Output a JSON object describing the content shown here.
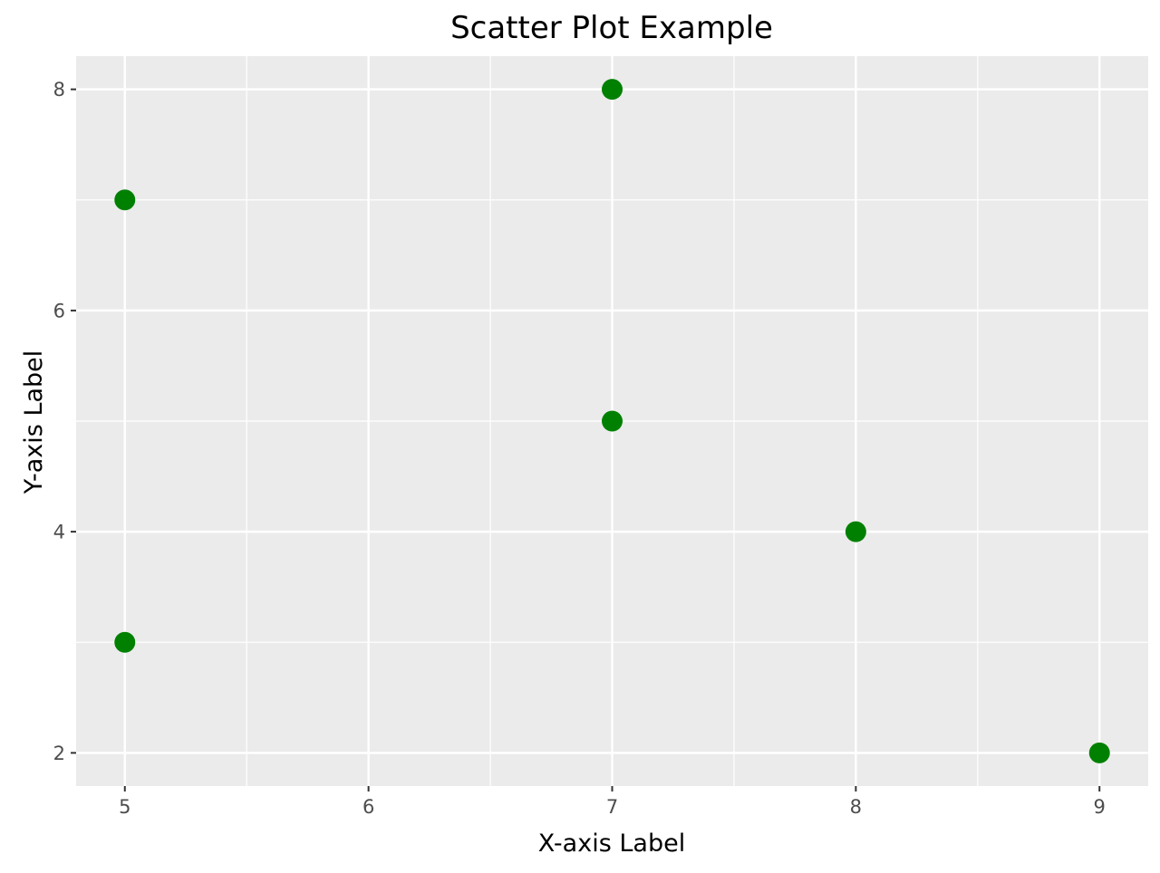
{
  "chart_data": {
    "type": "scatter",
    "title": "Scatter Plot Example",
    "xlabel": "X-axis Label",
    "ylabel": "Y-axis Label",
    "xlim": [
      4.8,
      9.2
    ],
    "ylim": [
      1.7,
      8.3
    ],
    "x_ticks": [
      5,
      6,
      7,
      8,
      9
    ],
    "y_ticks": [
      2,
      4,
      6,
      8
    ],
    "x_tick_labels": [
      "5",
      "6",
      "7",
      "8",
      "9"
    ],
    "y_tick_labels": [
      "2",
      "4",
      "6",
      "8"
    ],
    "grid": true,
    "legend": "none",
    "points": [
      {
        "x": 5,
        "y": 7
      },
      {
        "x": 7,
        "y": 8
      },
      {
        "x": 7,
        "y": 5
      },
      {
        "x": 8,
        "y": 4
      },
      {
        "x": 5,
        "y": 3
      },
      {
        "x": 9,
        "y": 2
      }
    ],
    "colors": {
      "point": "#008000",
      "panel_background": "#ebebeb",
      "grid_line": "#ffffff",
      "tick_label": "#4d4d4d",
      "tick_mark": "#333333"
    }
  }
}
